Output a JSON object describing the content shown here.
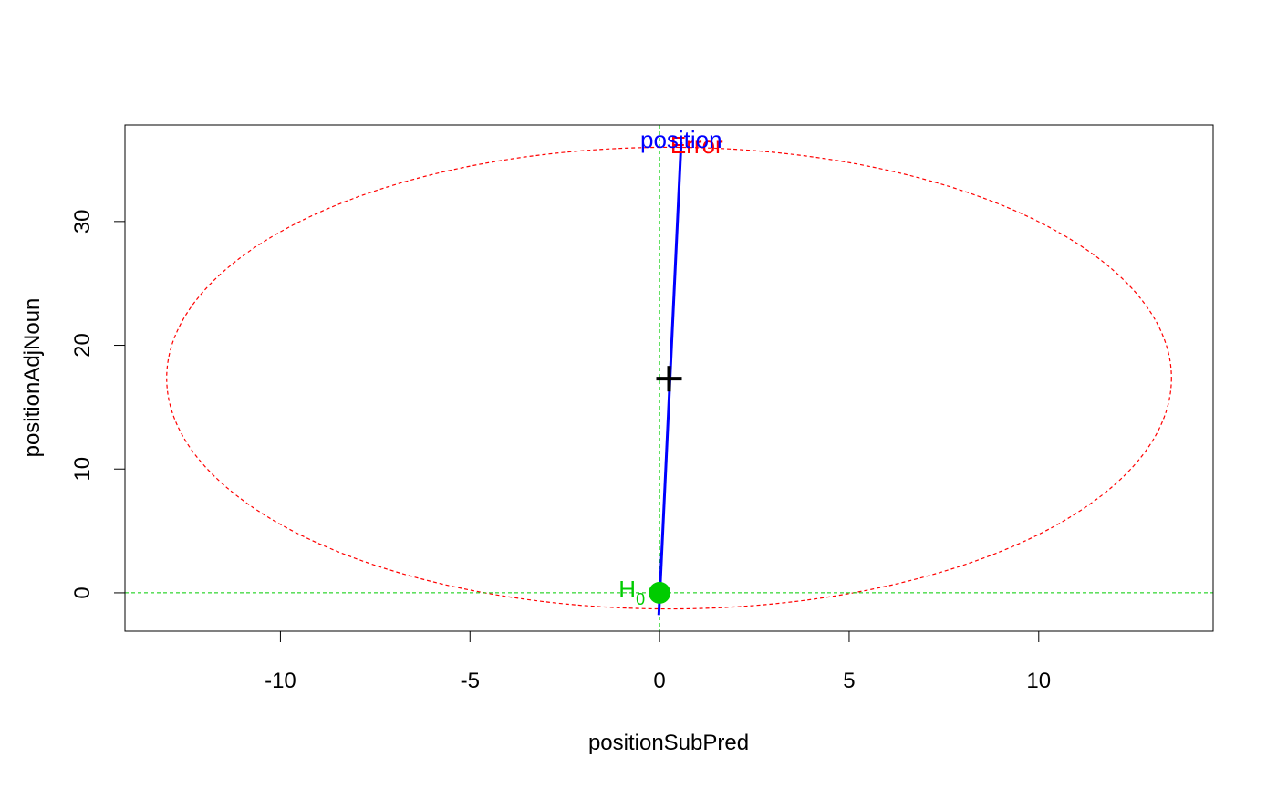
{
  "chart_data": {
    "type": "scatter",
    "title": "",
    "xlabel": "positionSubPred",
    "ylabel": "positionAdjNoun",
    "xlim": [
      -14.1,
      14.6
    ],
    "ylim": [
      -3.1,
      37.8
    ],
    "x_ticks": [
      -10,
      -5,
      0,
      5,
      10
    ],
    "y_ticks": [
      0,
      10,
      20,
      30
    ],
    "grid": false,
    "colors": {
      "ellipse": "#ff0000",
      "vector": "#0000ff",
      "h0": "#00cc00",
      "guide": "#00cc00",
      "center": "#000000",
      "axis": "#000000"
    },
    "error_ellipse": {
      "label": "Error",
      "center": [
        0.25,
        17.3
      ],
      "x_range": [
        -13.0,
        13.5
      ],
      "y_range": [
        -1.3,
        36.0
      ]
    },
    "hypothesis_vector": {
      "label": "position",
      "from": [
        -0.02,
        -1.8
      ],
      "to": [
        0.57,
        36.4
      ]
    },
    "center_point": {
      "x": 0.25,
      "y": 17.3
    },
    "h0_point": {
      "label": "H",
      "subscript": "0",
      "x": 0,
      "y": 0
    },
    "guide_lines": {
      "x": 0,
      "y": 0
    }
  }
}
